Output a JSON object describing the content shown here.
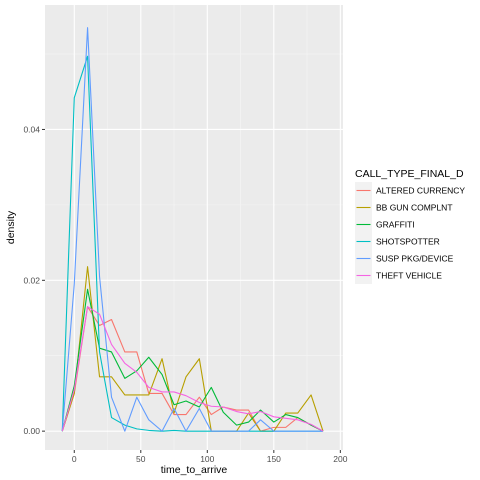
{
  "chart_data": {
    "type": "line",
    "title": "",
    "xlabel": "time_to_arrive",
    "ylabel": "density",
    "xlim": [
      -22,
      202
    ],
    "ylim": [
      -0.0025,
      0.0565
    ],
    "x_ticks": [
      0,
      50,
      100,
      150,
      200
    ],
    "x_tick_labels": [
      "0",
      "50",
      "100",
      "150",
      "200"
    ],
    "y_ticks": [
      0.0,
      0.02,
      0.04
    ],
    "y_tick_labels": [
      "0.00",
      "0.02",
      "0.04"
    ],
    "grid": true,
    "legend": {
      "title": "CALL_TYPE_FINAL_D",
      "position": "right"
    },
    "series": [
      {
        "name": "ALTERED CURRENCY",
        "color": "#F8766D",
        "x": [
          -9,
          0,
          10,
          19,
          28,
          38,
          47,
          56,
          66,
          75,
          84,
          94,
          103,
          112,
          122,
          131,
          140,
          150,
          159,
          168,
          178,
          187
        ],
        "y": [
          0.0,
          0.005,
          0.0165,
          0.014,
          0.0148,
          0.0105,
          0.0105,
          0.005,
          0.005,
          0.0022,
          0.0022,
          0.0045,
          0.0022,
          0.0032,
          0.0028,
          0.0028,
          0.0,
          0.0005,
          0.0005,
          0.0018,
          0.0008,
          0.0
        ]
      },
      {
        "name": "BB GUN COMPLNT",
        "color": "#B79F00",
        "x": [
          -9,
          0,
          10,
          19,
          28,
          38,
          47,
          56,
          66,
          75,
          84,
          94,
          103,
          112,
          122,
          131,
          140,
          150,
          159,
          168,
          178,
          187
        ],
        "y": [
          0.0,
          0.005,
          0.0218,
          0.0072,
          0.0072,
          0.0048,
          0.0048,
          0.0048,
          0.0096,
          0.0024,
          0.0072,
          0.0096,
          0.0,
          0.0,
          0.0,
          0.0024,
          0.0,
          0.0,
          0.0024,
          0.0024,
          0.0048,
          0.0
        ]
      },
      {
        "name": "GRAFFITI",
        "color": "#00BA38",
        "x": [
          -9,
          0,
          10,
          19,
          28,
          38,
          47,
          56,
          66,
          75,
          84,
          94,
          103,
          112,
          122,
          131,
          140,
          150,
          159,
          168,
          178,
          187
        ],
        "y": [
          0.0,
          0.006,
          0.0188,
          0.011,
          0.0105,
          0.007,
          0.008,
          0.0098,
          0.0075,
          0.0035,
          0.004,
          0.0032,
          0.0058,
          0.0025,
          0.0008,
          0.0012,
          0.0028,
          0.0012,
          0.0022,
          0.0018,
          0.0008,
          0.0
        ]
      },
      {
        "name": "SHOTSPOTTER",
        "color": "#00BFC4",
        "x": [
          -9,
          0,
          10,
          19,
          28,
          38,
          47,
          56,
          66,
          75,
          84,
          94,
          103,
          112,
          122,
          131,
          140,
          150,
          159,
          168,
          178,
          187
        ],
        "y": [
          0.0,
          0.0442,
          0.0497,
          0.0105,
          0.0018,
          0.0008,
          0.0003,
          0.0001,
          0.0,
          0.0001,
          0.0,
          0.0,
          0.0,
          0.0,
          0.0,
          0.0,
          0.0,
          0.0,
          0.0,
          0.0,
          0.0,
          0.0
        ]
      },
      {
        "name": "SUSP PKG/DEVICE",
        "color": "#619CFF",
        "x": [
          -9,
          0,
          10,
          19,
          28,
          38,
          47,
          56,
          66,
          75,
          84,
          94,
          103,
          112,
          122,
          131,
          140,
          150,
          159,
          168,
          178,
          187
        ],
        "y": [
          0.0,
          0.0195,
          0.0535,
          0.0205,
          0.0045,
          0.0,
          0.0045,
          0.0015,
          0.0,
          0.003,
          0.0,
          0.003,
          0.0,
          0.0,
          0.0,
          0.0,
          0.0015,
          0.0,
          0.0,
          0.0,
          0.0,
          0.0
        ]
      },
      {
        "name": "THEFT VEHICLE",
        "color": "#F564E3",
        "x": [
          -9,
          0,
          10,
          19,
          28,
          38,
          47,
          56,
          66,
          75,
          84,
          94,
          103,
          112,
          122,
          131,
          140,
          150,
          159,
          168,
          178,
          187
        ],
        "y": [
          0.0,
          0.0055,
          0.0165,
          0.0155,
          0.0115,
          0.009,
          0.0078,
          0.0058,
          0.0052,
          0.0052,
          0.0047,
          0.0038,
          0.0033,
          0.0032,
          0.0026,
          0.0023,
          0.0026,
          0.0019,
          0.0017,
          0.0015,
          0.0009,
          0.0
        ]
      }
    ]
  },
  "colors": {
    "panel_background": "#EBEBEB",
    "grid_major": "#FFFFFF",
    "axis_tick": "#333333"
  }
}
